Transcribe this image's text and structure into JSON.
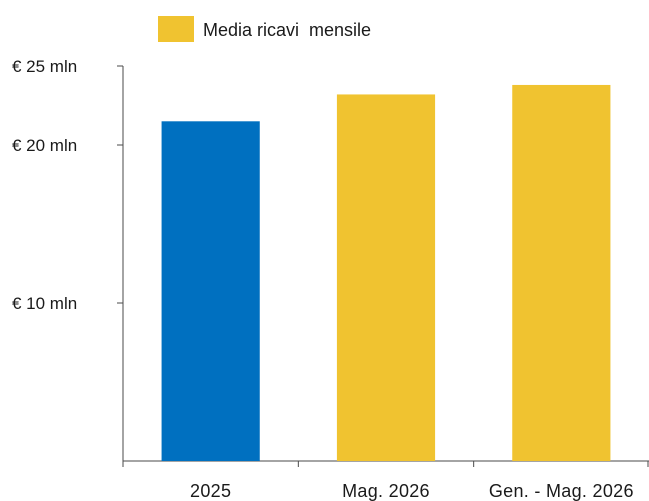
{
  "chart_data": {
    "type": "bar",
    "categories": [
      "2025",
      "Mag. 2026",
      "Gen. - Mag. 2026"
    ],
    "series": [
      {
        "name": "Media ricavi  mensile",
        "values": [
          21.5,
          23.2,
          23.8
        ],
        "colors": [
          "#0070c0",
          "#f0c330",
          "#f0c330"
        ]
      }
    ],
    "legend": {
      "label": "Media ricavi  mensile",
      "color": "#f0c330",
      "placement": "top"
    },
    "y_ticks": [
      {
        "value": 25,
        "label": "€ 25 mln"
      },
      {
        "value": 20,
        "label": "€ 20 mln"
      },
      {
        "value": 10,
        "label": "€ 10 mln"
      }
    ],
    "ylim": [
      0,
      25
    ],
    "grid": false,
    "title": "",
    "xlabel": "",
    "ylabel": ""
  }
}
